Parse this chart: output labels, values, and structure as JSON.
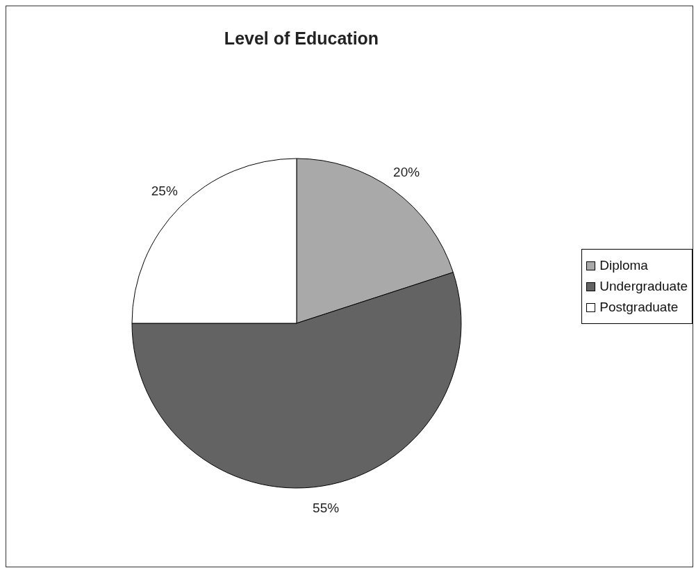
{
  "chart_data": {
    "type": "pie",
    "title": "Level of Education",
    "categories": [
      "Diploma",
      "Undergraduate",
      "Postgraduate"
    ],
    "values": [
      20,
      55,
      25
    ],
    "colors": [
      "#a9a9a9",
      "#636363",
      "#ffffff"
    ],
    "value_labels": [
      "20%",
      "55%",
      "25%"
    ],
    "legend": "right"
  }
}
